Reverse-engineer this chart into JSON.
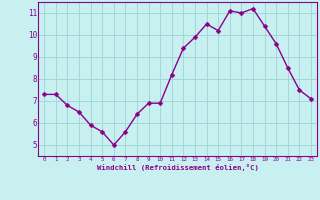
{
  "x": [
    0,
    1,
    2,
    3,
    4,
    5,
    6,
    7,
    8,
    9,
    10,
    11,
    12,
    13,
    14,
    15,
    16,
    17,
    18,
    19,
    20,
    21,
    22,
    23
  ],
  "y": [
    7.3,
    7.3,
    6.8,
    6.5,
    5.9,
    5.6,
    5.0,
    5.6,
    6.4,
    6.9,
    6.9,
    8.2,
    9.4,
    9.9,
    10.5,
    10.2,
    11.1,
    11.0,
    11.2,
    10.4,
    9.6,
    8.5,
    7.5,
    7.1
  ],
  "line_color": "#8b008b",
  "marker_color": "#8b008b",
  "bg_color": "#c8f0f0",
  "grid_color": "#a0d8d8",
  "axis_label_color": "#8b008b",
  "tick_label_color": "#8b008b",
  "xlabel": "Windchill (Refroidissement éolien,°C)",
  "xlim": [
    -0.5,
    23.5
  ],
  "ylim": [
    4.5,
    11.5
  ],
  "yticks": [
    5,
    6,
    7,
    8,
    9,
    10,
    11
  ],
  "xticks": [
    0,
    1,
    2,
    3,
    4,
    5,
    6,
    7,
    8,
    9,
    10,
    11,
    12,
    13,
    14,
    15,
    16,
    17,
    18,
    19,
    20,
    21,
    22,
    23
  ],
  "line_width": 1.0,
  "marker_size": 2.5,
  "fig_width": 3.2,
  "fig_height": 2.0,
  "dpi": 100
}
